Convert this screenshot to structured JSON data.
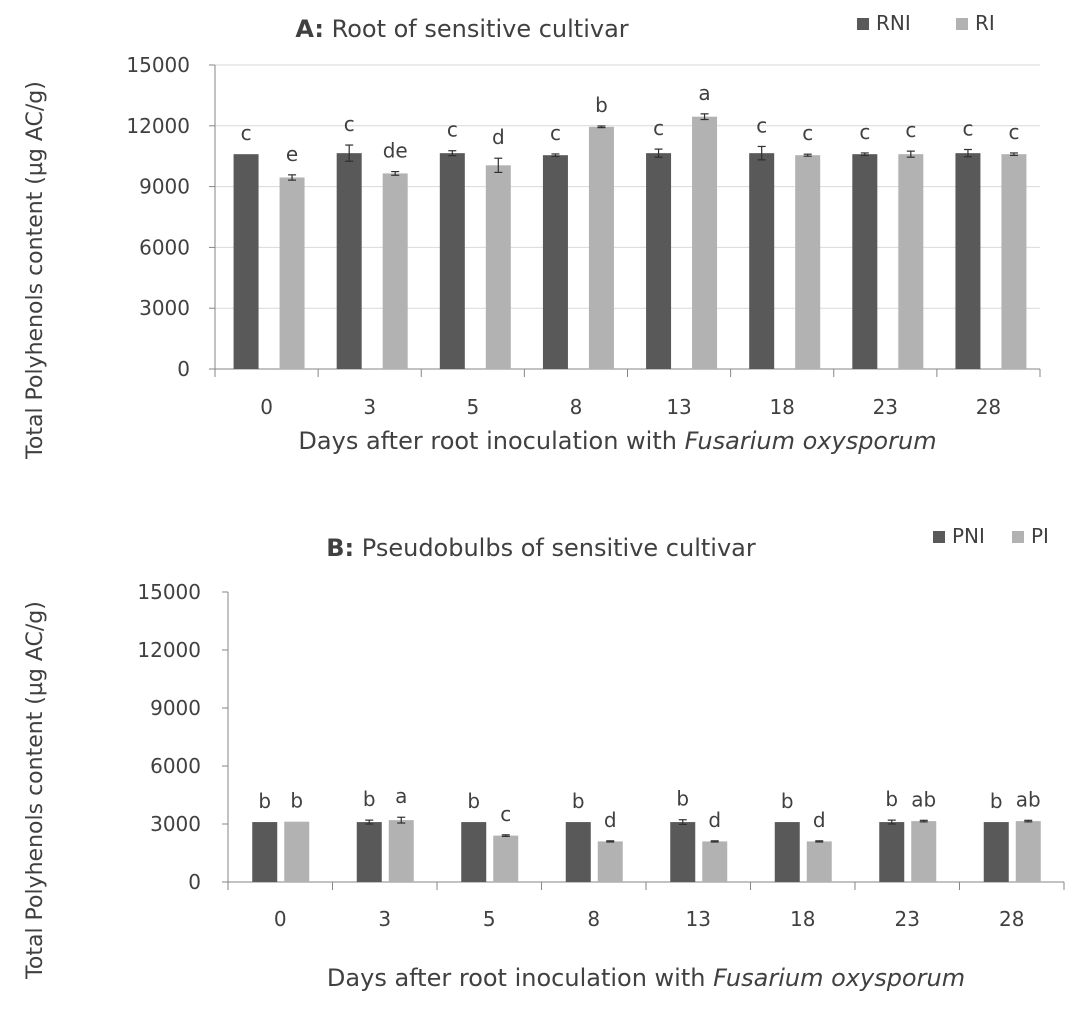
{
  "colors": {
    "dark_series": "#595959",
    "light_series": "#b2b2b2",
    "axis": "#868686",
    "grid": "#d9d9d9",
    "text": "#404040"
  },
  "chart_data": [
    {
      "type": "bar",
      "title_prefix": "A:",
      "title_rest": " Root of sensitive cultivar",
      "ylabel": "Total Polyhenols content (µg AC/g)",
      "xlabel_plain": "Days after root inoculation with ",
      "xlabel_italic": "Fusarium oxysporum",
      "categories": [
        "0",
        "3",
        "5",
        "8",
        "13",
        "18",
        "23",
        "28"
      ],
      "ylim": [
        0,
        15000
      ],
      "yticks": [
        "0",
        "3000",
        "6000",
        "9000",
        "12000",
        "15000"
      ],
      "grid": true,
      "legend_position": "top-right",
      "series": [
        {
          "name": "RNI",
          "values": [
            10600,
            10650,
            10650,
            10550,
            10650,
            10650,
            10600,
            10650
          ],
          "errors": [
            0,
            400,
            120,
            60,
            200,
            330,
            60,
            180
          ],
          "labels": [
            "c",
            "c",
            "c",
            "c",
            "c",
            "c",
            "c",
            "c"
          ]
        },
        {
          "name": "RI",
          "values": [
            9450,
            9650,
            10050,
            11950,
            12450,
            10550,
            10600,
            10600
          ],
          "errors": [
            130,
            90,
            350,
            40,
            140,
            50,
            150,
            60
          ],
          "labels": [
            "e",
            "de",
            "d",
            "b",
            "a",
            "c",
            "c",
            "c"
          ]
        }
      ]
    },
    {
      "type": "bar",
      "title_prefix": "B:",
      "title_rest": " Pseudobulbs of sensitive cultivar",
      "ylabel": "Total Polyhenols content (µg AC/g)",
      "xlabel_plain": "Days after root inoculation with ",
      "xlabel_italic": "Fusarium oxysporum",
      "categories": [
        "0",
        "3",
        "5",
        "8",
        "13",
        "18",
        "23",
        "28"
      ],
      "ylim": [
        0,
        15000
      ],
      "yticks": [
        "0",
        "3000",
        "6000",
        "9000",
        "12000",
        "15000"
      ],
      "grid": false,
      "legend_position": "top-right",
      "series": [
        {
          "name": "PNI",
          "values": [
            3100,
            3100,
            3100,
            3100,
            3100,
            3100,
            3100,
            3100
          ],
          "errors": [
            0,
            100,
            0,
            0,
            120,
            0,
            100,
            0
          ],
          "labels": [
            "b",
            "b",
            "b",
            "b",
            "b",
            "b",
            "b",
            "b"
          ]
        },
        {
          "name": "PI",
          "values": [
            3120,
            3200,
            2400,
            2100,
            2100,
            2100,
            3150,
            3150
          ],
          "errors": [
            0,
            150,
            40,
            30,
            30,
            30,
            40,
            40
          ],
          "labels": [
            "b",
            "a",
            "c",
            "d",
            "d",
            "d",
            "ab",
            "ab"
          ]
        }
      ]
    }
  ]
}
